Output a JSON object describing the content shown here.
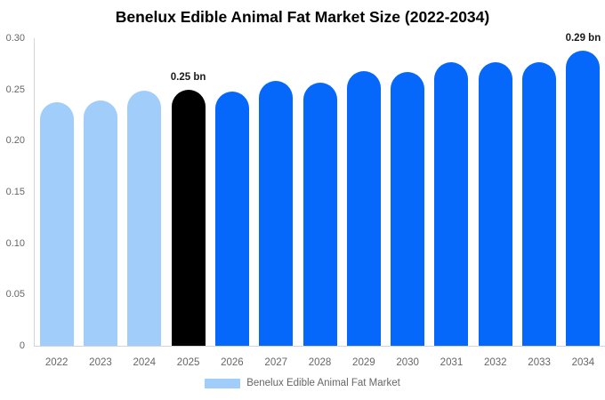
{
  "chart_data": {
    "type": "bar",
    "title": "Benelux Edible Animal Fat Market Size (2022-2034)",
    "categories": [
      "2022",
      "2023",
      "2024",
      "2025",
      "2026",
      "2027",
      "2028",
      "2029",
      "2030",
      "2031",
      "2032",
      "2033",
      "2034"
    ],
    "values": [
      0.238,
      0.239,
      0.249,
      0.25,
      0.248,
      0.258,
      0.257,
      0.268,
      0.267,
      0.277,
      0.277,
      0.277,
      0.288
    ],
    "unit": "bn",
    "xlabel": "",
    "ylabel": "",
    "ylim": [
      0,
      0.3
    ],
    "yticks": [
      0,
      0.05,
      0.1,
      0.15,
      0.2,
      0.25,
      0.3
    ],
    "ytick_labels": [
      "0",
      "0.05",
      "0.10",
      "0.15",
      "0.20",
      "0.25",
      "0.30"
    ],
    "grid": false,
    "legend_position": "bottom",
    "legend_label": "Benelux Edible Animal Fat Market",
    "annotations": [
      {
        "category": "2025",
        "text": "0.25 bn"
      },
      {
        "category": "2034",
        "text": "0.29 bn"
      }
    ],
    "bar_colors": [
      "#a1cdfa",
      "#a1cdfa",
      "#a1cdfa",
      "#000000",
      "#0667fb",
      "#0667fb",
      "#0667fb",
      "#0667fb",
      "#0667fb",
      "#0667fb",
      "#0667fb",
      "#0667fb",
      "#0667fb"
    ],
    "colors": {
      "historical": "#a1cdfa",
      "highlight": "#000000",
      "forecast": "#0667fb",
      "legend_swatch": "#a1cdfa",
      "axis_line": "#d5d5d5",
      "tick_text": "#666666",
      "annotation_text": "#1a1a1a",
      "title_text": "#000000",
      "background": "#ffffff"
    }
  }
}
